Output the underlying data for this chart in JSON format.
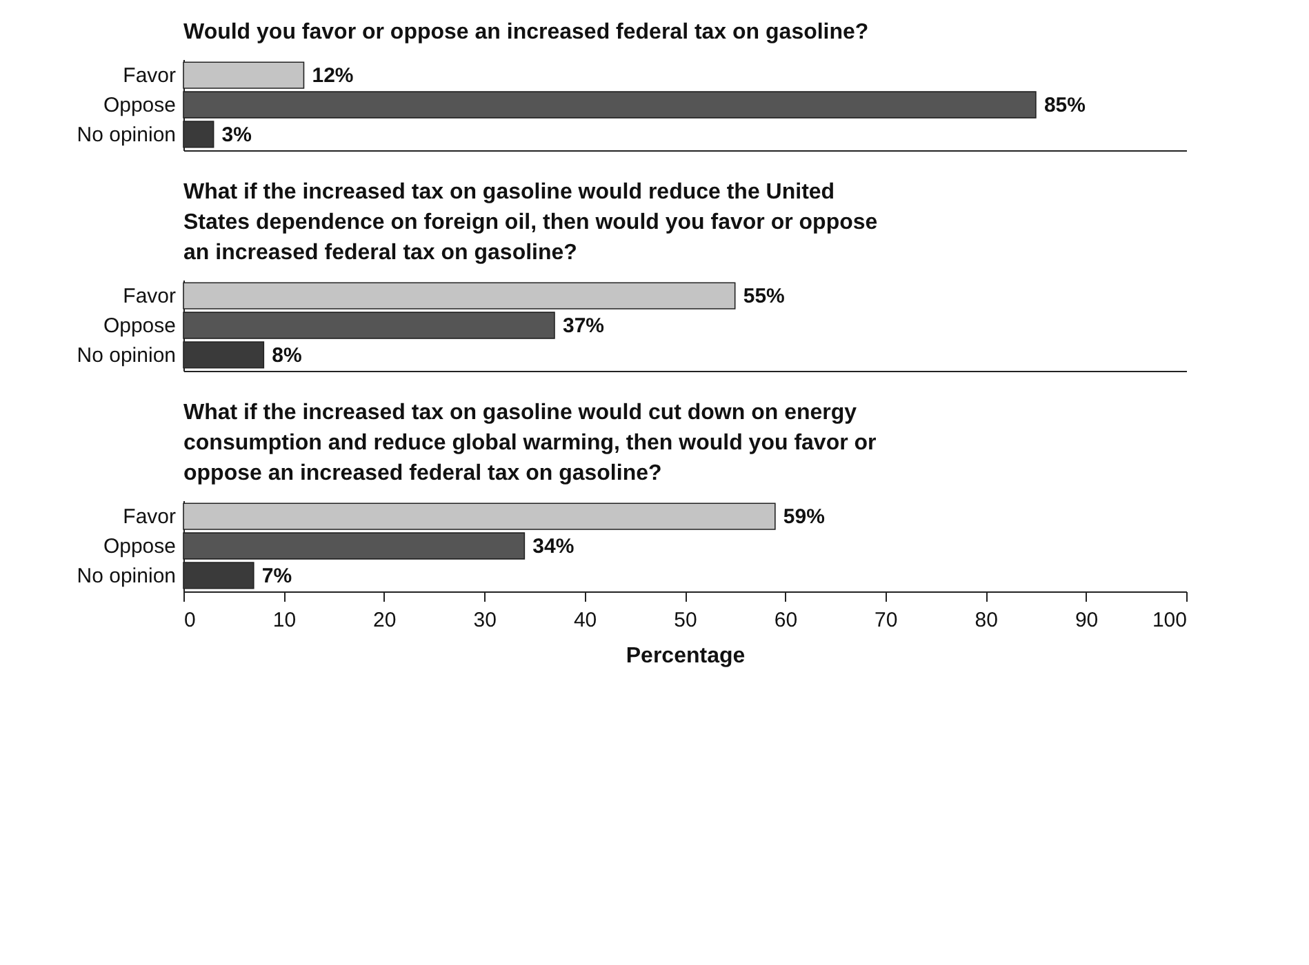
{
  "chart_data": [
    {
      "type": "bar",
      "orientation": "horizontal",
      "title": "Would you favor or oppose an increased federal  tax on gasoline?",
      "categories": [
        "Favor",
        "Oppose",
        "No opinion"
      ],
      "values": [
        12,
        85,
        3
      ],
      "value_labels": [
        "12%",
        "85%",
        "3%"
      ],
      "colors": [
        "#c4c4c4",
        "#555555",
        "#3a3a3a"
      ],
      "xlim": [
        0,
        100
      ],
      "xticks": [
        0,
        10,
        20,
        30,
        40,
        50,
        60,
        70,
        80,
        90,
        100
      ],
      "tick_labels": "y",
      "grid": false
    },
    {
      "type": "bar",
      "orientation": "horizontal",
      "title": "What if the increased tax on gasoline would reduce the United States dependence on foreign oil, then would you favor or oppose an increased federal tax on gasoline?",
      "categories": [
        "Favor",
        "Oppose",
        "No opinion"
      ],
      "values": [
        55,
        37,
        8
      ],
      "value_labels": [
        "55%",
        "37%",
        "8%"
      ],
      "colors": [
        "#c4c4c4",
        "#555555",
        "#3a3a3a"
      ],
      "xlim": [
        0,
        100
      ],
      "xticks": [
        0,
        10,
        20,
        30,
        40,
        50,
        60,
        70,
        80,
        90,
        100
      ],
      "tick_labels": "y",
      "grid": false
    },
    {
      "type": "bar",
      "orientation": "horizontal",
      "title": "What if the increased tax on gasoline would cut down on energy consumption and reduce global warming, then would you favor or oppose an increased federal tax on gasoline?",
      "categories": [
        "Favor",
        "Oppose",
        "No opinion"
      ],
      "values": [
        59,
        34,
        7
      ],
      "value_labels": [
        "59%",
        "34%",
        "7%"
      ],
      "colors": [
        "#c4c4c4",
        "#555555",
        "#3a3a3a"
      ],
      "xlim": [
        0,
        100
      ],
      "xticks": [
        0,
        10,
        20,
        30,
        40,
        50,
        60,
        70,
        80,
        90,
        100
      ],
      "xlabel": "Percentage",
      "grid": false
    }
  ]
}
